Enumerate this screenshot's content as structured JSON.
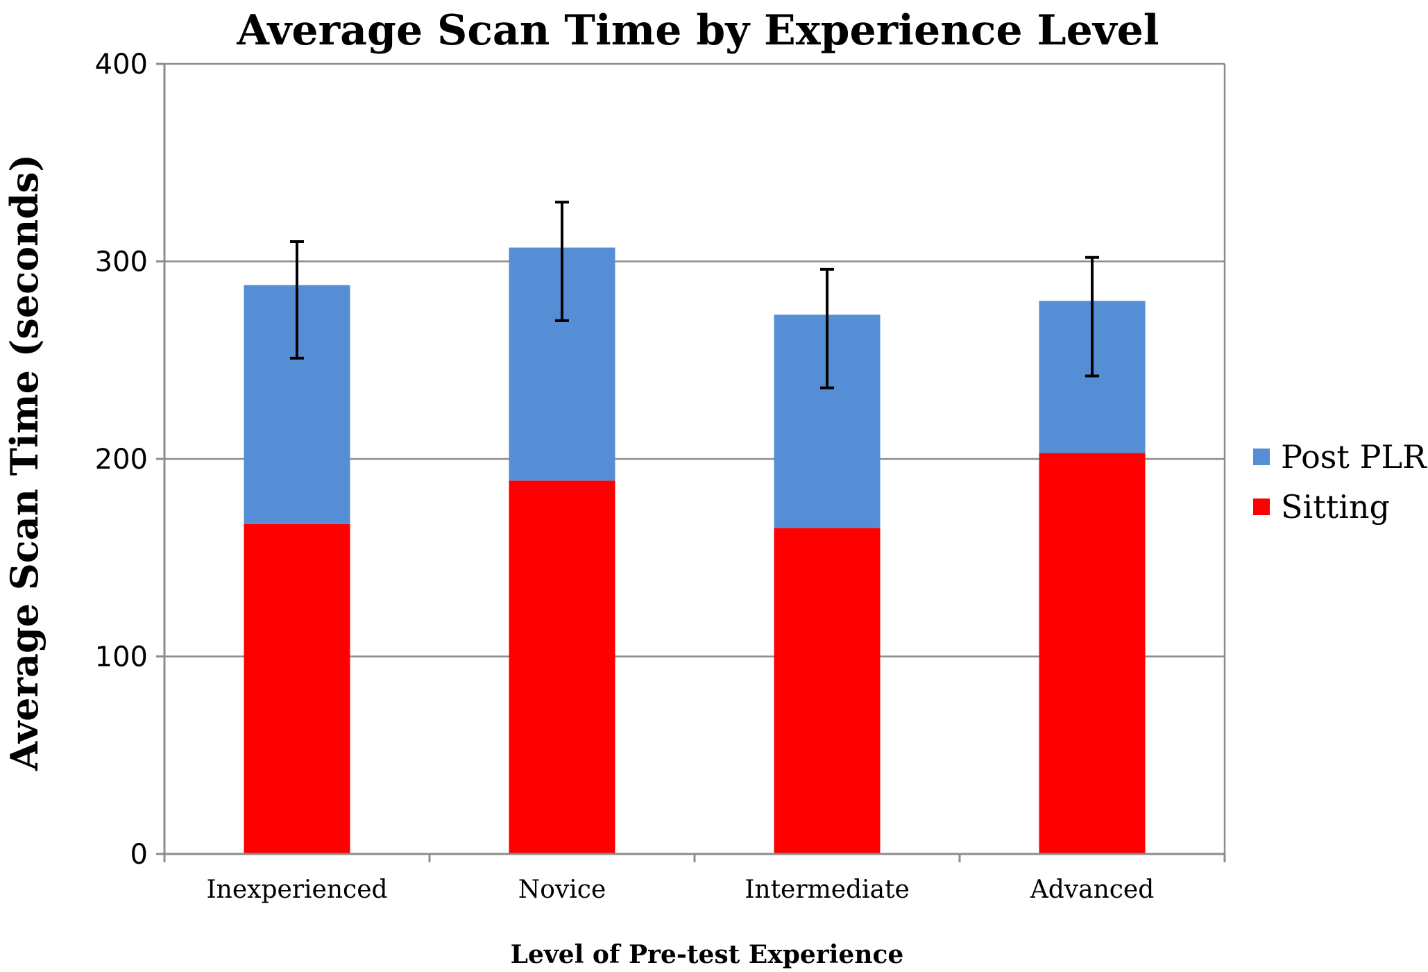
{
  "chart_data": {
    "type": "bar",
    "stacked": true,
    "title": "Average Scan Time by Experience Level",
    "xlabel": "Level of Pre-test Experience",
    "ylabel": "Average Scan Time (seconds)",
    "ylim": [
      0,
      400
    ],
    "yticks": [
      0,
      100,
      200,
      300,
      400
    ],
    "grid": true,
    "legend_position": "right",
    "categories": [
      "Inexperienced",
      "Novice",
      "Intermediate",
      "Advanced"
    ],
    "series": [
      {
        "name": "Sitting",
        "values": [
          167,
          189,
          165,
          203
        ],
        "color": "#ff0000"
      },
      {
        "name": "Post PLR",
        "values": [
          121,
          118,
          108,
          77
        ],
        "color": "#558ed5"
      }
    ],
    "totals": [
      288,
      307,
      273,
      280
    ],
    "error_bars": [
      {
        "low": 251,
        "high": 310
      },
      {
        "low": 270,
        "high": 330
      },
      {
        "low": 236,
        "high": 296
      },
      {
        "low": 242,
        "high": 302
      }
    ],
    "legend_order": [
      "Post PLR",
      "Sitting"
    ]
  }
}
